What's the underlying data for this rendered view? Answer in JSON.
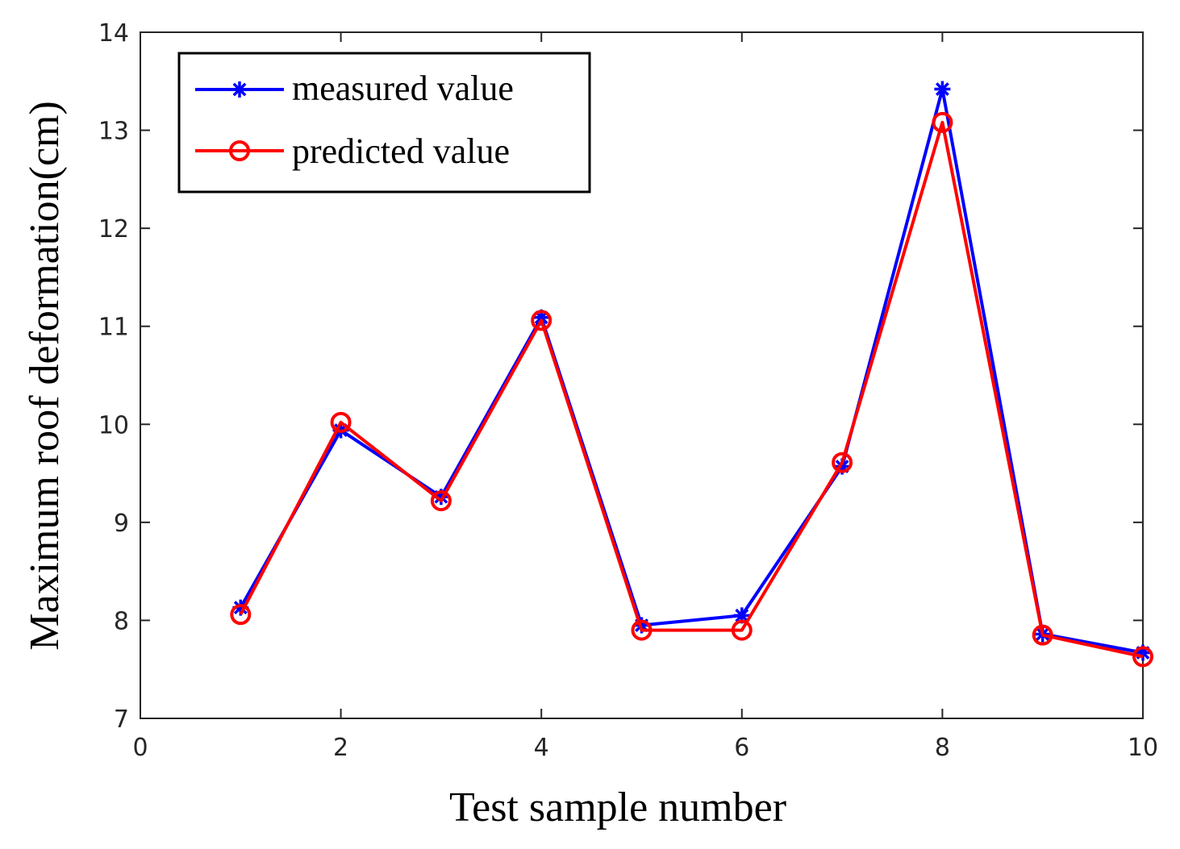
{
  "chart_data": {
    "type": "line",
    "title": "",
    "xlabel": "Test sample number",
    "ylabel": "Maximum roof deformation(cm)",
    "xlim": [
      0,
      10
    ],
    "ylim": [
      7,
      14
    ],
    "xticks": [
      0,
      2,
      4,
      6,
      8,
      10
    ],
    "yticks": [
      7,
      8,
      9,
      10,
      11,
      12,
      13,
      14
    ],
    "x": [
      1,
      2,
      3,
      4,
      5,
      6,
      7,
      8,
      9,
      10
    ],
    "series": [
      {
        "name": "measured value",
        "color": "#0000ff",
        "marker": "asterisk",
        "values": [
          8.13,
          9.94,
          9.26,
          11.09,
          7.95,
          8.05,
          9.57,
          13.42,
          7.86,
          7.67
        ]
      },
      {
        "name": "predicted value",
        "color": "#ff0000",
        "marker": "circle",
        "values": [
          8.06,
          10.02,
          9.22,
          11.06,
          7.9,
          7.9,
          9.61,
          13.08,
          7.85,
          7.63
        ]
      }
    ],
    "legend": {
      "position": "top-left"
    },
    "grid": false
  }
}
